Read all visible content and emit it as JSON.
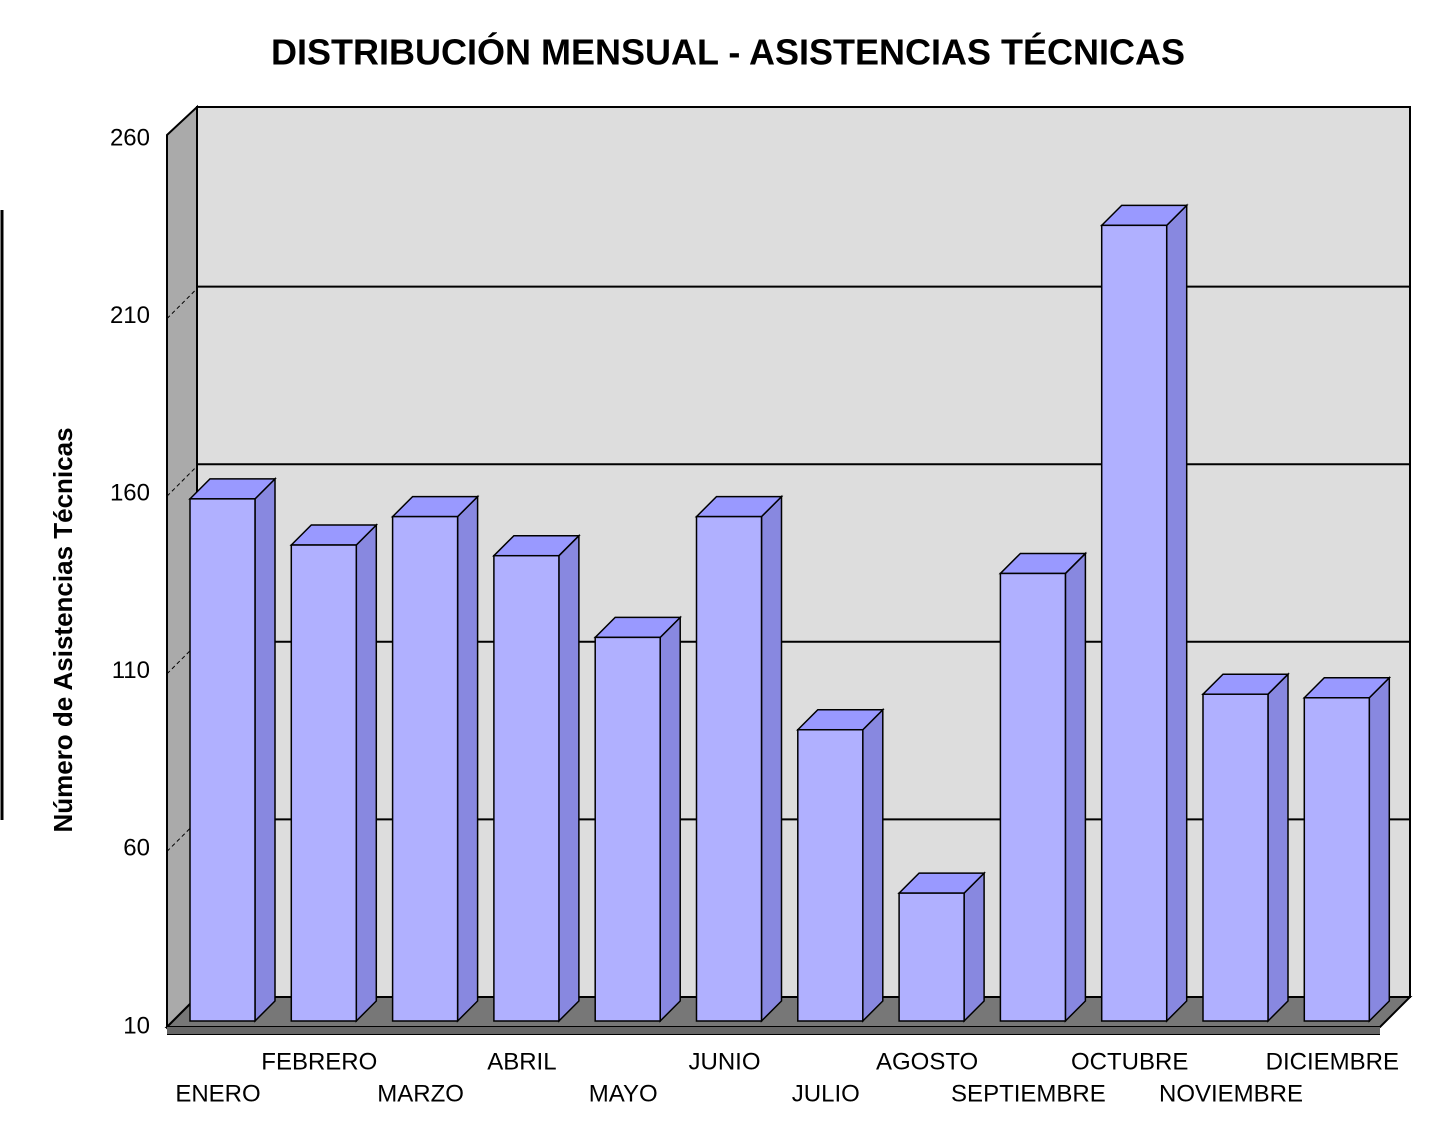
{
  "chart_data": {
    "type": "bar",
    "title": "DISTRIBUCIÓN MENSUAL - ASISTENCIAS TÉCNICAS",
    "ylabel": "Número de Asistencias Técnicas",
    "categories": [
      "ENERO",
      "FEBRERO",
      "MARZO",
      "ABRIL",
      "MAYO",
      "JUNIO",
      "JULIO",
      "AGOSTO",
      "SEPTIEMBRE",
      "OCTUBRE",
      "NOVIEMBRE",
      "DICIEMBRE"
    ],
    "values": [
      157,
      144,
      152,
      141,
      118,
      152,
      92,
      46,
      136,
      234,
      102,
      101
    ],
    "color": "#b0b0ff",
    "ylim": [
      10,
      260
    ],
    "yticks": [
      10,
      60,
      110,
      160,
      210,
      260
    ],
    "grid": true
  }
}
